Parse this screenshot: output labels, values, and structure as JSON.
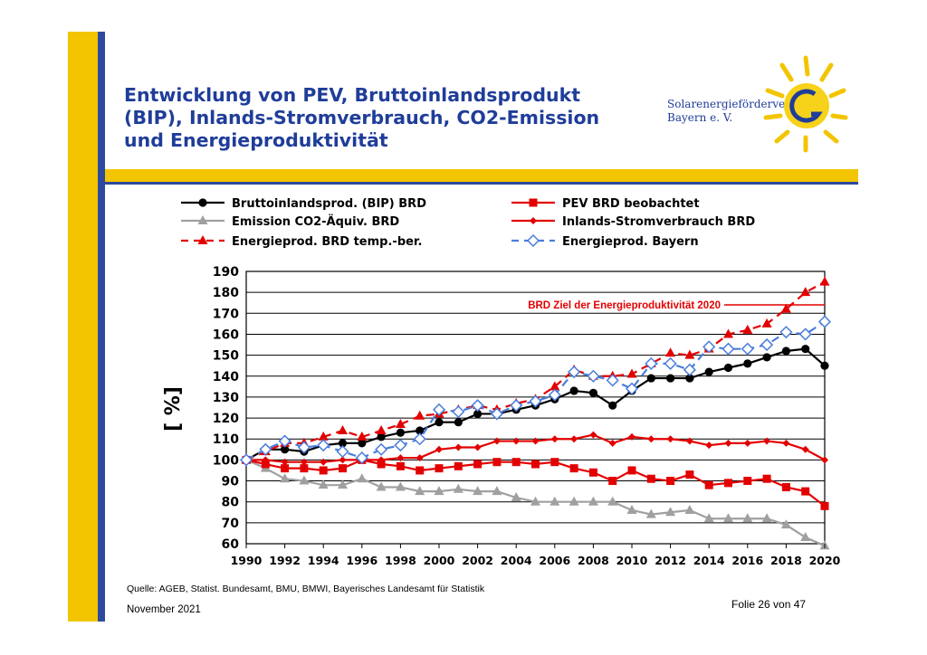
{
  "slide": {
    "title_lines": [
      "Entwicklung von PEV, Bruttoinlandsprodukt",
      "(BIP), Inlands-Stromverbrauch, CO2-Emission",
      "und Energieproduktivität"
    ],
    "logo_lines": [
      "Solarenergieförderverein",
      "Bayern e. V."
    ],
    "source": "Quelle: AGEB, Statist. Bundesamt, BMU, BMWI, Bayerisches Landesamt für Statistik",
    "date": "November 2021",
    "folio": "Folie 26 von 47",
    "colors": {
      "accent_yellow": "#f2c500",
      "accent_blue": "#2e4a9e",
      "title_blue": "#1f3d99"
    }
  },
  "chart_data": {
    "type": "line",
    "ylabel": "[ %]",
    "ylim": [
      60,
      190
    ],
    "yticks": [
      60,
      70,
      80,
      90,
      100,
      110,
      120,
      130,
      140,
      150,
      160,
      170,
      180,
      190
    ],
    "xlim": [
      1990,
      2020
    ],
    "xticks": [
      1990,
      1992,
      1994,
      1996,
      1998,
      2000,
      2002,
      2004,
      2006,
      2008,
      2010,
      2012,
      2014,
      2016,
      2018,
      2020
    ],
    "grid": true,
    "legend_position": "top",
    "annotation": {
      "text": "BRD Ziel der Energieproduktivität  2020",
      "y": 174
    },
    "series": [
      {
        "name": "Bruttoinlandsprod. (BIP) BRD",
        "color": "#000000",
        "marker": "circle",
        "dash": "solid",
        "x": [
          1990,
          1991,
          1992,
          1993,
          1994,
          1995,
          1996,
          1997,
          1998,
          1999,
          2000,
          2001,
          2002,
          2003,
          2004,
          2005,
          2006,
          2007,
          2008,
          2009,
          2010,
          2011,
          2012,
          2013,
          2014,
          2015,
          2016,
          2017,
          2018,
          2019,
          2020
        ],
        "y": [
          100,
          105,
          105,
          104,
          107,
          108,
          108,
          111,
          113,
          114,
          118,
          118,
          122,
          122,
          124,
          126,
          129,
          133,
          132,
          126,
          133,
          139,
          139,
          139,
          142,
          144,
          146,
          149,
          152,
          153,
          145
        ]
      },
      {
        "name": "Emission CO2-Äquiv. BRD",
        "color": "#a0a0a0",
        "marker": "triangle",
        "dash": "solid",
        "x": [
          1990,
          1991,
          1992,
          1993,
          1994,
          1995,
          1996,
          1997,
          1998,
          1999,
          2000,
          2001,
          2002,
          2003,
          2004,
          2005,
          2006,
          2007,
          2008,
          2009,
          2010,
          2011,
          2012,
          2013,
          2014,
          2015,
          2016,
          2017,
          2018,
          2019,
          2020
        ],
        "y": [
          100,
          96,
          91,
          90,
          88,
          88,
          91,
          87,
          87,
          85,
          85,
          86,
          85,
          85,
          82,
          80,
          80,
          80,
          80,
          80,
          76,
          74,
          75,
          76,
          72,
          72,
          72,
          72,
          69,
          63,
          59
        ]
      },
      {
        "name": "Energieprod. BRD temp.-ber.",
        "color": "#e30000",
        "marker": "triangle",
        "dash": "dashed",
        "x": [
          1990,
          1991,
          1992,
          1993,
          1994,
          1995,
          1996,
          1997,
          1998,
          1999,
          2000,
          2001,
          2002,
          2003,
          2004,
          2005,
          2006,
          2007,
          2008,
          2009,
          2010,
          2011,
          2012,
          2013,
          2014,
          2015,
          2016,
          2017,
          2018,
          2019,
          2020
        ],
        "y": [
          100,
          104,
          108,
          108,
          111,
          114,
          111,
          114,
          117,
          121,
          122,
          124,
          126,
          124,
          127,
          129,
          135,
          143,
          140,
          140,
          141,
          146,
          151,
          150,
          153,
          160,
          162,
          165,
          172,
          180,
          185
        ]
      },
      {
        "name": "PEV BRD beobachtet",
        "color": "#e30000",
        "marker": "square",
        "dash": "solid",
        "x": [
          1990,
          1991,
          1992,
          1993,
          1994,
          1995,
          1996,
          1997,
          1998,
          1999,
          2000,
          2001,
          2002,
          2003,
          2004,
          2005,
          2006,
          2007,
          2008,
          2009,
          2010,
          2011,
          2012,
          2013,
          2014,
          2015,
          2016,
          2017,
          2018,
          2019,
          2020
        ],
        "y": [
          100,
          98,
          96,
          96,
          95,
          96,
          100,
          98,
          97,
          95,
          96,
          97,
          98,
          99,
          99,
          98,
          99,
          96,
          94,
          90,
          95,
          91,
          90,
          93,
          88,
          89,
          90,
          91,
          87,
          85,
          78
        ]
      },
      {
        "name": "Inlands-Stromverbrauch BRD",
        "color": "#e30000",
        "marker": "diamond",
        "dash": "solid",
        "x": [
          1990,
          1991,
          1992,
          1993,
          1994,
          1995,
          1996,
          1997,
          1998,
          1999,
          2000,
          2001,
          2002,
          2003,
          2004,
          2005,
          2006,
          2007,
          2008,
          2009,
          2010,
          2011,
          2012,
          2013,
          2014,
          2015,
          2016,
          2017,
          2018,
          2019,
          2020
        ],
        "y": [
          100,
          100,
          99,
          99,
          99,
          100,
          100,
          100,
          101,
          101,
          105,
          106,
          106,
          109,
          109,
          109,
          110,
          110,
          112,
          108,
          111,
          110,
          110,
          109,
          107,
          108,
          108,
          109,
          108,
          105,
          100
        ]
      },
      {
        "name": "Energieprod. Bayern",
        "color": "#4a7ddc",
        "marker": "diamond-open",
        "dash": "dashed",
        "x": [
          1990,
          1991,
          1992,
          1993,
          1994,
          1995,
          1996,
          1997,
          1998,
          1999,
          2000,
          2001,
          2002,
          2003,
          2004,
          2005,
          2006,
          2007,
          2008,
          2009,
          2010,
          2011,
          2012,
          2013,
          2014,
          2015,
          2016,
          2017,
          2018,
          2019,
          2020
        ],
        "y": [
          100,
          105,
          109,
          106,
          107,
          104,
          101,
          105,
          107,
          110,
          124,
          123,
          126,
          122,
          126,
          128,
          131,
          142,
          140,
          138,
          134,
          146,
          146,
          143,
          154,
          153,
          153,
          155,
          161,
          160,
          166
        ]
      }
    ]
  }
}
